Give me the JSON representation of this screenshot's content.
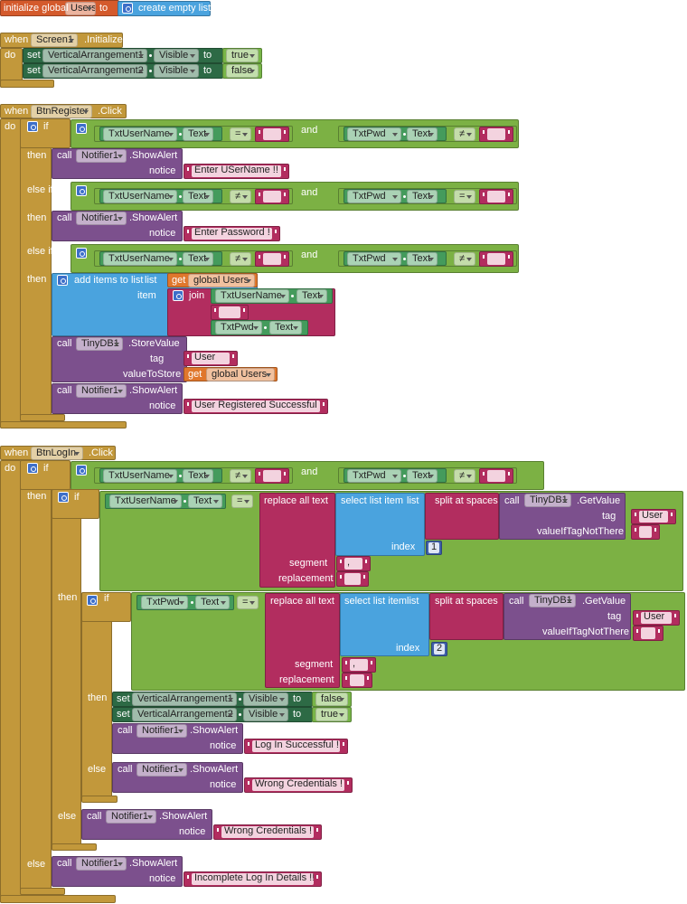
{
  "sections": [
    {
      "texts": [
        "initialize global",
        "Users",
        "to",
        "create empty list"
      ]
    },
    {
      "texts": [
        "when",
        "Screen1",
        ".Initialize",
        "do",
        "set",
        "VerticalArrangement1",
        "Visible",
        "to",
        "true",
        "set",
        "VerticalArrangement2",
        "Visible",
        "to",
        "false"
      ]
    },
    {
      "texts": [
        "when",
        "BtnRegister",
        ".Click",
        "do",
        "if",
        "TxtUserName",
        "Text",
        "=",
        "and",
        "TxtPwd",
        "Text",
        "≠",
        "then",
        "call",
        "Notifier1",
        ".ShowAlert",
        "notice",
        "Enter USerName !!",
        "else if",
        "TxtUserName",
        "Text",
        "≠",
        "and",
        "TxtPwd",
        "Text",
        "=",
        "then",
        "call",
        "Notifier1",
        ".ShowAlert",
        "notice",
        "Enter Password !",
        "else if",
        "TxtUserName",
        "Text",
        "≠",
        "and",
        "TxtPwd",
        "Text",
        "≠",
        "then",
        "add items to list",
        "list",
        "get",
        "global Users",
        "item",
        "join",
        "TxtUserName",
        "Text",
        "TxtPwd",
        "Text",
        "call",
        "TinyDB1",
        ".StoreValue",
        "tag",
        "User",
        "valueToStore",
        "get",
        "global Users",
        "call",
        "Notifier1",
        ".ShowAlert",
        "notice",
        "User Registered Successful !"
      ]
    },
    {
      "texts": [
        "when",
        "BtnLogIn",
        ".Click",
        "do",
        "if",
        "TxtUserName",
        "Text",
        "≠",
        "and",
        "TxtPwd",
        "Text",
        "≠",
        "then",
        "if",
        "TxtUserName",
        "Text",
        "=",
        "replace all text",
        "select list item",
        "list",
        "split at spaces",
        "call",
        "TinyDB1",
        ".GetValue",
        "tag",
        "User",
        "valueIfTagNotThere",
        "index",
        1,
        "segment",
        ",",
        "replacement",
        "then",
        "if",
        "TxtPwd",
        "Text",
        "=",
        "replace all text",
        "select list item",
        "list",
        "split at spaces",
        "call",
        "TinyDB1",
        ".GetValue",
        "tag",
        "User",
        "valueIfTagNotThere",
        "index",
        2,
        "segment",
        ",",
        "replacement",
        "then",
        "set",
        "VerticalArrangement1",
        "Visible",
        "to",
        "false",
        "set",
        "VerticalArrangement2",
        "Visible",
        "to",
        "true",
        "call",
        "Notifier1",
        ".ShowAlert",
        "notice",
        "Log In Successful !",
        "else",
        "call",
        "Notifier1",
        ".ShowAlert",
        "notice",
        "Wrong Credentials !",
        "else",
        "call",
        "Notifier1",
        ".ShowAlert",
        "notice",
        "Wrong Credentials !",
        "else",
        "call",
        "Notifier1",
        ".ShowAlert",
        "notice",
        "Incomplete Log In Details !!"
      ]
    }
  ]
}
